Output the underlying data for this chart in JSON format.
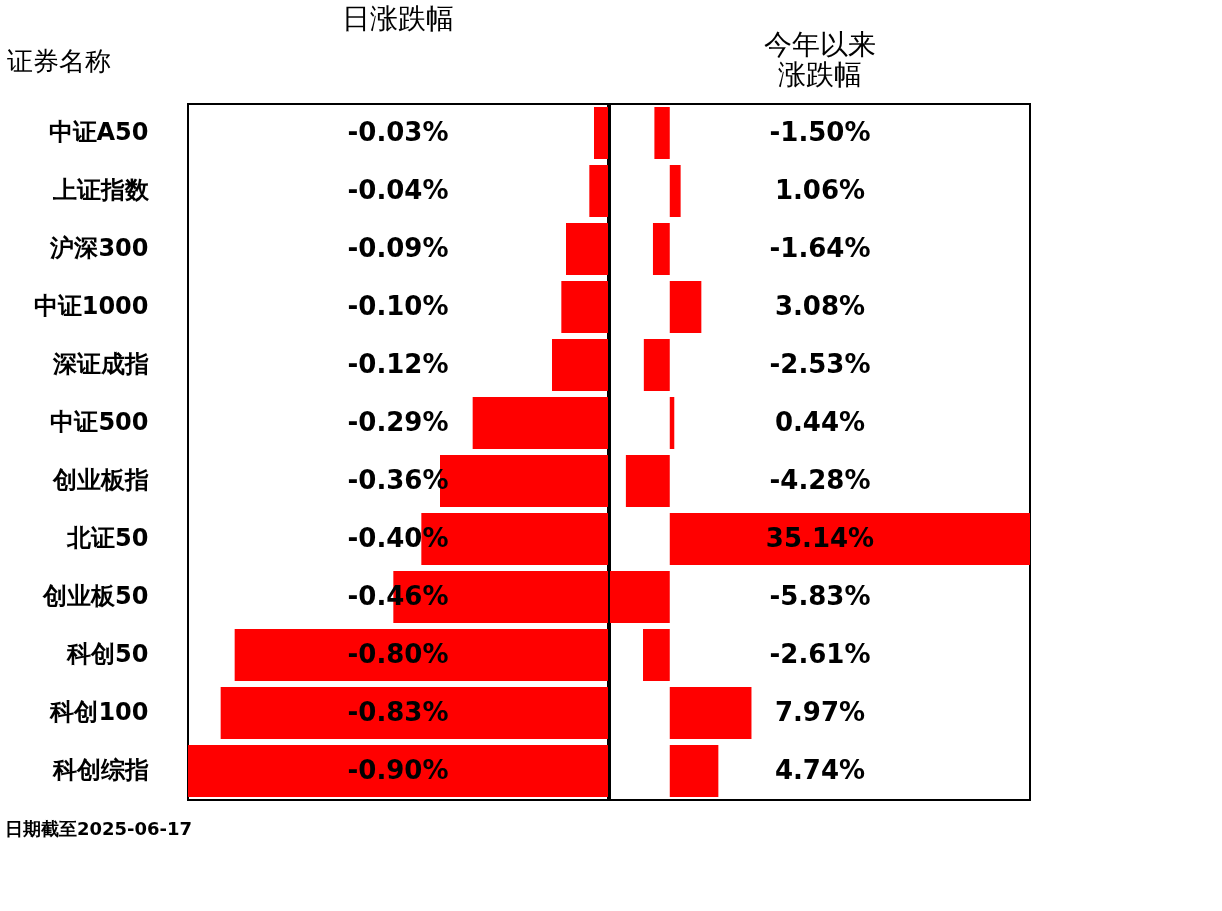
{
  "chart_data": [
    {
      "type": "bar",
      "orientation": "horizontal",
      "title": "日涨跌幅",
      "ylabel": "证券名称",
      "tick_labels": "y",
      "color": "#ff0000",
      "categories": [
        "中证A50",
        "上证指数",
        "沪深300",
        "中证1000",
        "深证成指",
        "中证500",
        "创业板指",
        "北证50",
        "创业板50",
        "科创50",
        "科创100",
        "科创综指"
      ],
      "values": [
        -0.03,
        -0.04,
        -0.09,
        -0.1,
        -0.12,
        -0.29,
        -0.36,
        -0.4,
        -0.46,
        -0.8,
        -0.83,
        -0.9
      ],
      "value_labels": [
        "-0.03%",
        "-0.04%",
        "-0.09%",
        "-0.10%",
        "-0.12%",
        "-0.29%",
        "-0.36%",
        "-0.40%",
        "-0.46%",
        "-0.80%",
        "-0.83%",
        "-0.90%"
      ],
      "annotations": [
        "日期截至2025-06-17"
      ]
    },
    {
      "type": "bar",
      "orientation": "horizontal",
      "title": "今年以来涨跌幅",
      "tick_labels": false,
      "color": "#ff0000",
      "values": [
        -1.5,
        1.06,
        -1.64,
        3.08,
        -2.53,
        0.44,
        -4.28,
        35.14,
        -5.83,
        -2.61,
        7.97,
        4.74
      ],
      "value_labels": [
        "-1.50%",
        "1.06%",
        "-1.64%",
        "3.08%",
        "-2.53%",
        "0.44%",
        "-4.28%",
        "35.14%",
        "-5.83%",
        "-2.61%",
        "7.97%",
        "4.74%"
      ]
    }
  ]
}
